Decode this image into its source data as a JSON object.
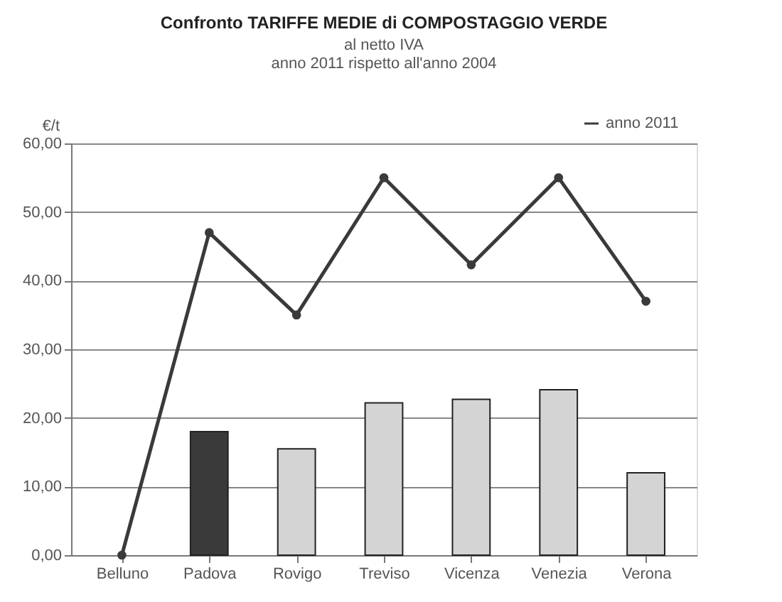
{
  "chart_data": {
    "type": "bar",
    "title": "Confronto TARIFFE  MEDIE di COMPOSTAGGIO VERDE",
    "subtitle": "al netto IVA\nanno 2011 rispetto all'anno 2004",
    "ylabel": "€/t",
    "categories": [
      "Belluno",
      "Padova",
      "Rovigo",
      "Treviso",
      "Vicenza",
      "Venezia",
      "Verona"
    ],
    "series": [
      {
        "colors": [
          "#d4d4d4",
          "#3a3a3a",
          "#d4d4d4",
          "#d4d4d4",
          "#d4d4d4",
          "#d4d4d4",
          "#d4d4d4"
        ],
        "values": [
          null,
          18,
          15.5,
          22.2,
          22.7,
          24.1,
          12
        ]
      },
      {
        "type": "line",
        "name": "anno 2011",
        "color": "#3a3a3a",
        "marker": "circle",
        "line_style": "solid",
        "values": [
          0,
          47,
          35,
          55,
          42.3,
          55,
          37
        ]
      }
    ],
    "ylim": [
      0,
      60
    ],
    "yticks": [
      {
        "value": 0,
        "label": "0,00"
      },
      {
        "value": 10,
        "label": "10,00"
      },
      {
        "value": 20,
        "label": "20,00"
      },
      {
        "value": 30,
        "label": "30,00"
      },
      {
        "value": 40,
        "label": "40,00"
      },
      {
        "value": 50,
        "label": "50,00"
      },
      {
        "value": 60,
        "label": "60,00"
      }
    ],
    "grid": "y",
    "legend": "top right"
  }
}
